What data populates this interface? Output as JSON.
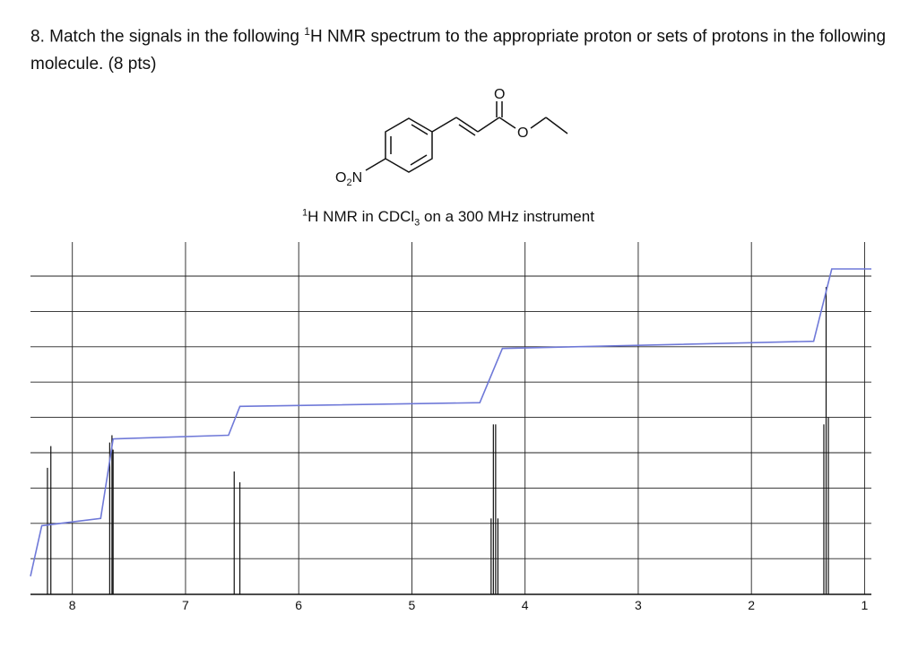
{
  "question": {
    "number": "8.",
    "text_before_sup": "Match the signals in the following ",
    "sup": "1",
    "text_after_sup": "H NMR spectrum to the appropriate proton or sets of protons in the following molecule. (8 pts)"
  },
  "molecule": {
    "nitro_label": "O",
    "nitro_subscript": "2",
    "nitro_n": "N",
    "carbonyl_o": "O",
    "ester_o": "O"
  },
  "subtitle": {
    "sup": "1",
    "text_before_sub": "H NMR in CDCl",
    "sub": "3",
    "text_after_sub": " on a 300 MHz instrument"
  },
  "chart_data": {
    "type": "line",
    "title": "",
    "xlabel": "",
    "ylabel": "",
    "x_reversed": true,
    "xlim": [
      8.37,
      0.94
    ],
    "ylim": [
      0,
      9
    ],
    "grid": true,
    "x_ticks": [
      8,
      7,
      6,
      5,
      4,
      3,
      2,
      1
    ],
    "peaks": [
      {
        "shift": 8.22,
        "height": 3.5
      },
      {
        "shift": 8.19,
        "height": 4.1
      },
      {
        "shift": 7.67,
        "height": 4.2
      },
      {
        "shift": 7.65,
        "height": 4.4
      },
      {
        "shift": 7.64,
        "height": 4.0
      },
      {
        "shift": 6.57,
        "height": 3.4
      },
      {
        "shift": 6.52,
        "height": 3.1
      },
      {
        "shift": 4.3,
        "height": 2.1
      },
      {
        "shift": 4.28,
        "height": 4.7
      },
      {
        "shift": 4.26,
        "height": 4.7
      },
      {
        "shift": 4.24,
        "height": 2.1
      },
      {
        "shift": 1.36,
        "height": 4.7
      },
      {
        "shift": 1.34,
        "height": 8.5
      },
      {
        "shift": 1.32,
        "height": 4.9
      }
    ],
    "integration": [
      {
        "x": 8.37,
        "y": 0.5
      },
      {
        "x": 8.27,
        "y": 1.9
      },
      {
        "x": 7.75,
        "y": 2.1
      },
      {
        "x": 7.64,
        "y": 4.3
      },
      {
        "x": 6.62,
        "y": 4.4
      },
      {
        "x": 6.52,
        "y": 5.2
      },
      {
        "x": 4.4,
        "y": 5.3
      },
      {
        "x": 4.2,
        "y": 6.8
      },
      {
        "x": 1.45,
        "y": 7.0
      },
      {
        "x": 1.29,
        "y": 9.0
      },
      {
        "x": 0.94,
        "y": 9.0
      }
    ]
  }
}
